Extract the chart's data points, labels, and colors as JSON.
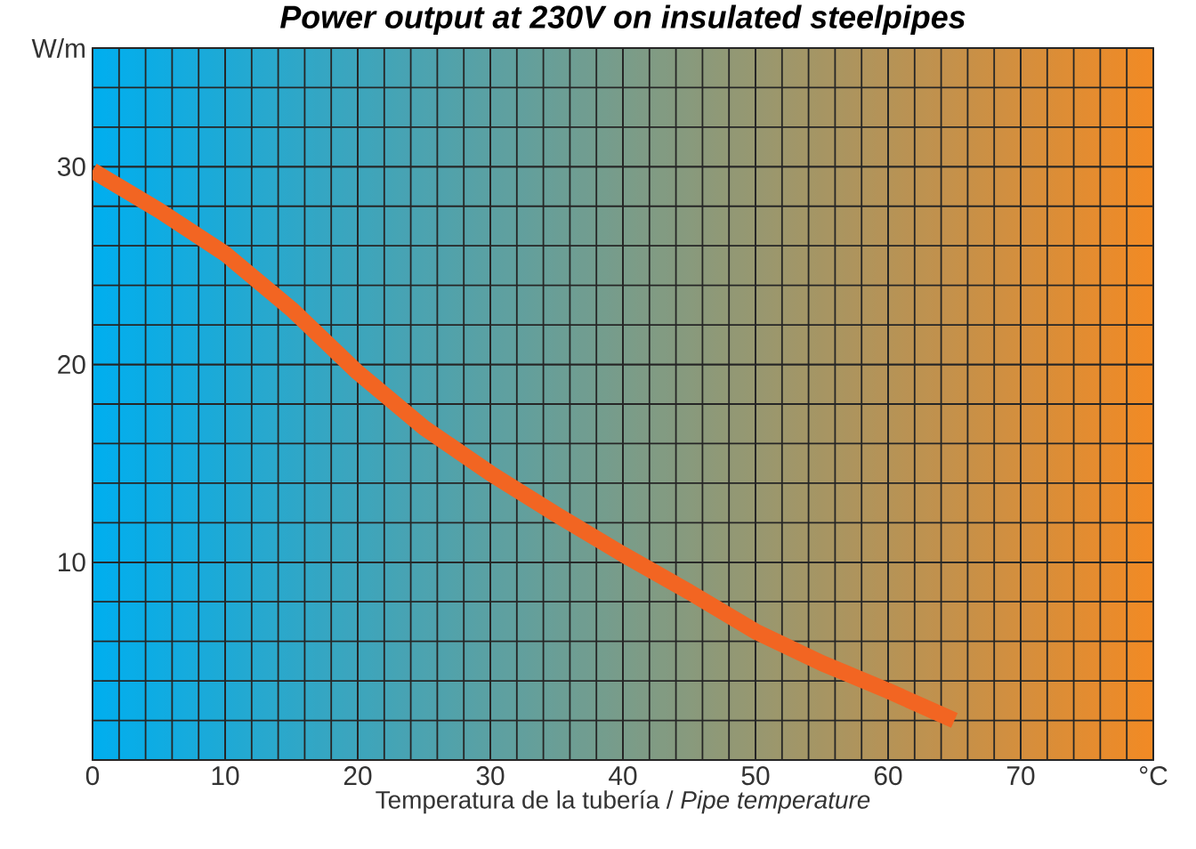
{
  "chart_data": {
    "type": "line",
    "title": "Power output at 230V on insulated steelpipes",
    "xlabel": "Temperatura de la tubería / *Pipe temperature*",
    "x": [
      0,
      5,
      10,
      15,
      20,
      25,
      30,
      35,
      40,
      45,
      50,
      55,
      60,
      65
    ],
    "series": [
      {
        "color": "#f26522",
        "values": [
          29.8,
          27.8,
          25.6,
          22.8,
          19.6,
          16.8,
          14.5,
          12.4,
          10.4,
          8.5,
          6.5,
          4.9,
          3.5,
          2.0
        ]
      }
    ],
    "xlim": [
      0,
      80
    ],
    "ylim": [
      0,
      36
    ],
    "xticks": [
      0,
      10,
      20,
      30,
      40,
      50,
      60,
      70,
      {
        "value": 80,
        "label": "°C"
      }
    ],
    "yticks": [
      10,
      20,
      30,
      {
        "value": 36,
        "label": "W/m"
      }
    ],
    "grid": true,
    "marker": "none",
    "line_style": "solid"
  }
}
